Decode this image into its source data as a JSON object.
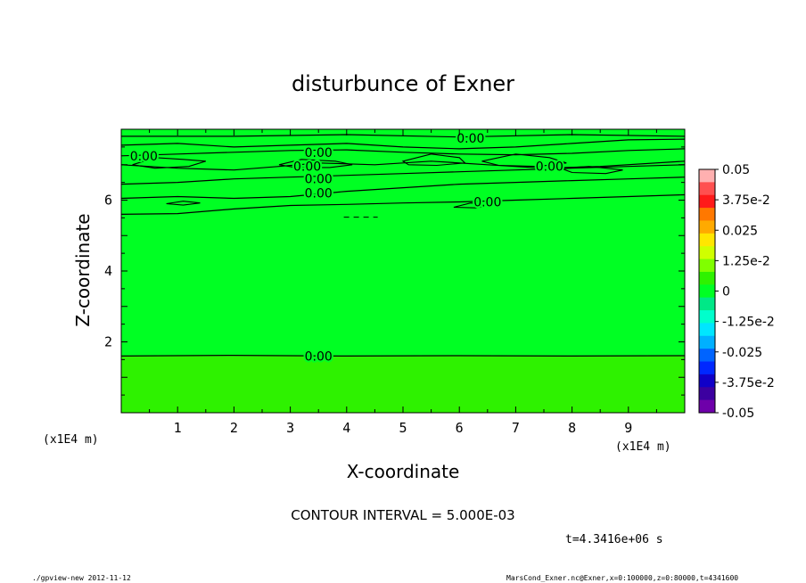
{
  "chart_data": {
    "type": "heatmap",
    "title": "disturbunce of Exner",
    "xlabel": "X-coordinate",
    "ylabel": "Z-coordinate",
    "x_unit": "(x1E4 m)",
    "y_unit": "(x1E4 m)",
    "xlim": [
      0,
      10
    ],
    "ylim": [
      0,
      8
    ],
    "x_ticks": [
      "1",
      "2",
      "3",
      "4",
      "5",
      "6",
      "7",
      "8",
      "9"
    ],
    "y_ticks": [
      "2",
      "4",
      "6"
    ],
    "contour_labels": [
      {
        "text": "0.00",
        "x": 6.2,
        "y": 7.75
      },
      {
        "text": "0.00",
        "x": 0.4,
        "y": 7.25
      },
      {
        "text": "0.00",
        "x": 3.5,
        "y": 7.35
      },
      {
        "text": "0.00",
        "x": 3.3,
        "y": 6.95
      },
      {
        "text": "0.00",
        "x": 3.5,
        "y": 6.6
      },
      {
        "text": "0.00",
        "x": 3.5,
        "y": 6.2
      },
      {
        "text": "0.00",
        "x": 7.6,
        "y": 6.95
      },
      {
        "text": "0.00",
        "x": 6.5,
        "y": 5.95
      },
      {
        "text": "0.00",
        "x": 3.5,
        "y": 1.6
      }
    ],
    "contour_lines": [
      {
        "points": [
          [
            0,
            7.8
          ],
          [
            2,
            7.8
          ],
          [
            4,
            7.85
          ],
          [
            6,
            7.78
          ],
          [
            8,
            7.85
          ],
          [
            10,
            7.8
          ]
        ]
      },
      {
        "points": [
          [
            0,
            7.55
          ],
          [
            1,
            7.6
          ],
          [
            2,
            7.5
          ],
          [
            3,
            7.55
          ],
          [
            4,
            7.6
          ],
          [
            5,
            7.5
          ],
          [
            6,
            7.45
          ],
          [
            7,
            7.5
          ],
          [
            8,
            7.6
          ],
          [
            9,
            7.7
          ],
          [
            10,
            7.72
          ]
        ]
      },
      {
        "points": [
          [
            0,
            7.25
          ],
          [
            1,
            7.3
          ],
          [
            2,
            7.35
          ],
          [
            3,
            7.4
          ],
          [
            4,
            7.42
          ],
          [
            5,
            7.35
          ],
          [
            6,
            7.3
          ],
          [
            7,
            7.28
          ],
          [
            8,
            7.32
          ],
          [
            9,
            7.4
          ],
          [
            10,
            7.45
          ]
        ]
      },
      {
        "points": [
          [
            0,
            7.0
          ],
          [
            1,
            6.9
          ],
          [
            2,
            6.85
          ],
          [
            2.8,
            6.95
          ],
          [
            3.5,
            7.05
          ],
          [
            4.5,
            7.0
          ],
          [
            5.5,
            7.1
          ],
          [
            6.5,
            7.0
          ],
          [
            7.5,
            6.9
          ],
          [
            8.5,
            6.95
          ],
          [
            10,
            7.1
          ]
        ]
      },
      {
        "points": [
          [
            0,
            6.45
          ],
          [
            1,
            6.5
          ],
          [
            2,
            6.6
          ],
          [
            3,
            6.65
          ],
          [
            4,
            6.7
          ],
          [
            5,
            6.75
          ],
          [
            6,
            6.8
          ],
          [
            7,
            6.85
          ],
          [
            8,
            6.9
          ],
          [
            9,
            6.95
          ],
          [
            10,
            7.0
          ]
        ]
      },
      {
        "points": [
          [
            0,
            6.05
          ],
          [
            1,
            6.1
          ],
          [
            2,
            6.05
          ],
          [
            3,
            6.1
          ],
          [
            4,
            6.25
          ],
          [
            5,
            6.35
          ],
          [
            6,
            6.45
          ],
          [
            7,
            6.5
          ],
          [
            8,
            6.55
          ],
          [
            9,
            6.6
          ],
          [
            10,
            6.65
          ]
        ]
      },
      {
        "points": [
          [
            0,
            5.6
          ],
          [
            1,
            5.62
          ],
          [
            2,
            5.75
          ],
          [
            3,
            5.85
          ],
          [
            4,
            5.88
          ],
          [
            5,
            5.92
          ],
          [
            6,
            5.95
          ],
          [
            7,
            6.0
          ],
          [
            8,
            6.05
          ],
          [
            9,
            6.1
          ],
          [
            10,
            6.15
          ]
        ]
      },
      {
        "points": [
          [
            0,
            1.6
          ],
          [
            2,
            1.62
          ],
          [
            4,
            1.6
          ],
          [
            6,
            1.61
          ],
          [
            8,
            1.6
          ],
          [
            10,
            1.61
          ]
        ]
      }
    ],
    "contour_loops": [
      {
        "points": [
          [
            0.2,
            7.0
          ],
          [
            0.6,
            7.2
          ],
          [
            1.1,
            7.15
          ],
          [
            1.5,
            7.1
          ],
          [
            1.2,
            6.95
          ],
          [
            0.6,
            6.9
          ],
          [
            0.2,
            7.0
          ]
        ]
      },
      {
        "points": [
          [
            2.8,
            7.0
          ],
          [
            3.2,
            7.15
          ],
          [
            3.8,
            7.1
          ],
          [
            4.1,
            7.0
          ],
          [
            3.7,
            6.92
          ],
          [
            3.1,
            6.92
          ],
          [
            2.8,
            7.0
          ]
        ]
      },
      {
        "points": [
          [
            5.0,
            7.1
          ],
          [
            5.5,
            7.3
          ],
          [
            6.0,
            7.2
          ],
          [
            6.1,
            7.05
          ],
          [
            5.6,
            6.98
          ],
          [
            5.1,
            7.0
          ],
          [
            5.0,
            7.1
          ]
        ]
      },
      {
        "points": [
          [
            6.4,
            7.1
          ],
          [
            7.0,
            7.3
          ],
          [
            7.6,
            7.2
          ],
          [
            7.9,
            7.05
          ],
          [
            7.4,
            6.95
          ],
          [
            6.7,
            6.98
          ],
          [
            6.4,
            7.1
          ]
        ]
      },
      {
        "points": [
          [
            7.8,
            6.9
          ],
          [
            8.3,
            6.95
          ],
          [
            8.9,
            6.85
          ],
          [
            8.6,
            6.75
          ],
          [
            8.0,
            6.78
          ],
          [
            7.8,
            6.9
          ]
        ]
      },
      {
        "points": [
          [
            0.8,
            5.9
          ],
          [
            1.1,
            5.97
          ],
          [
            1.4,
            5.92
          ],
          [
            1.1,
            5.86
          ],
          [
            0.8,
            5.9
          ]
        ]
      },
      {
        "points": [
          [
            5.9,
            5.8
          ],
          [
            6.2,
            5.92
          ],
          [
            6.6,
            5.88
          ],
          [
            6.3,
            5.78
          ],
          [
            5.9,
            5.8
          ]
        ]
      }
    ],
    "dashed_segments": [
      {
        "points": [
          [
            3.95,
            5.52
          ],
          [
            4.55,
            5.52
          ]
        ]
      }
    ],
    "fills": {
      "upper_color": "#00ff23",
      "lower_color": "#2ef200",
      "boundary_z": 1.6
    },
    "colorbar": {
      "labels": [
        "0.05",
        "3.75e-2",
        "0.025",
        "1.25e-2",
        "0",
        "-1.25e-2",
        "-0.025",
        "-3.75e-2",
        "-0.05"
      ],
      "colors": [
        "#ffb0b0",
        "#ff5050",
        "#ff1a1a",
        "#ff7800",
        "#ffaa00",
        "#ffe600",
        "#d0ff00",
        "#80ff00",
        "#2ef200",
        "#00ff23",
        "#00e887",
        "#00ffcc",
        "#00e6ff",
        "#00b0ff",
        "#0064ff",
        "#0028ff",
        "#1000c8",
        "#3c00a0",
        "#6e00aa"
      ]
    }
  },
  "annotations": {
    "contour_interval": "CONTOUR INTERVAL = 5.000E-03",
    "time": "t=4.3416e+06 s",
    "footer_left": "./gpview-new  2012-11-12",
    "footer_right": "MarsCond_Exner.nc@Exner,x=0:100000,z=0:80000,t=4341600"
  }
}
